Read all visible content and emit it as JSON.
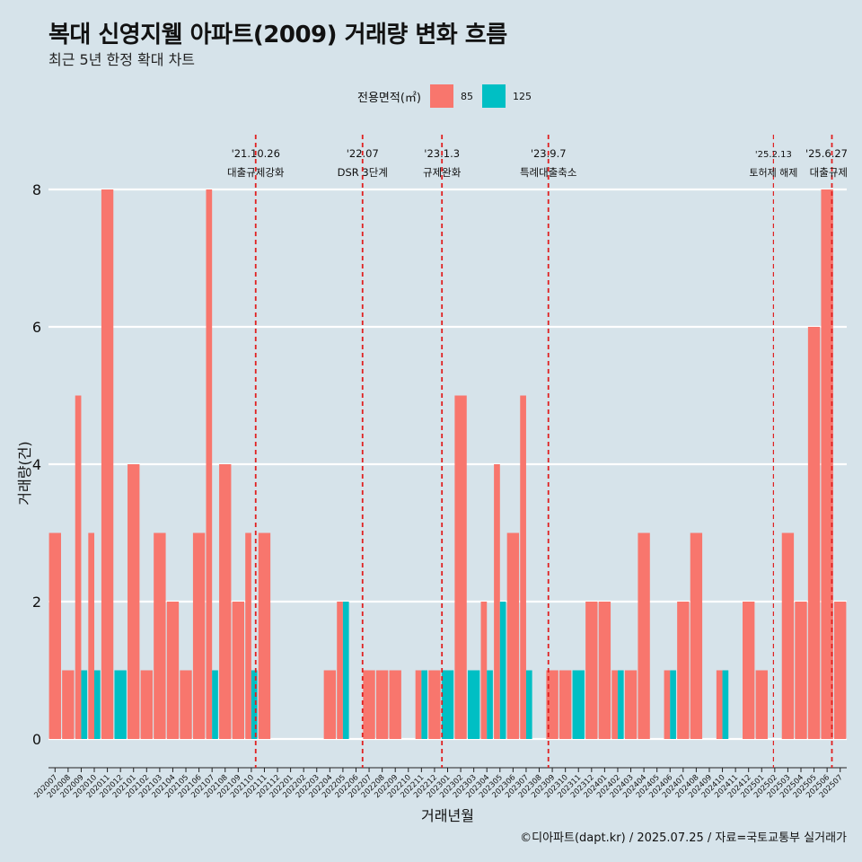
{
  "title": "복대 신영지웰 아파트(2009) 거래량 변화 흐름",
  "subtitle": "최근 5년 한정 확대 차트",
  "caption": "©디아파트(dapt.kr) / 2025.07.25 / 자료=국토교통부 실거래가",
  "legend": {
    "title": "전용면적(㎡)",
    "items": [
      {
        "label": "85",
        "color": "#F8766D"
      },
      {
        "label": "125",
        "color": "#00BFC4"
      }
    ]
  },
  "chart_data": {
    "type": "bar",
    "xlabel": "거래년월",
    "ylabel": "거래량(건)",
    "ylim": [
      0,
      8
    ],
    "yticks": [
      0,
      2,
      4,
      6,
      8
    ],
    "grid": true,
    "legend_position": "top",
    "categories": [
      "202007",
      "202008",
      "202009",
      "202010",
      "202011",
      "202012",
      "202101",
      "202102",
      "202103",
      "202104",
      "202105",
      "202106",
      "202107",
      "202108",
      "202109",
      "202110",
      "202111",
      "202112",
      "202201",
      "202202",
      "202203",
      "202204",
      "202205",
      "202206",
      "202207",
      "202208",
      "202209",
      "202210",
      "202211",
      "202212",
      "202301",
      "202302",
      "202303",
      "202304",
      "202305",
      "202306",
      "202307",
      "202308",
      "202309",
      "202310",
      "202311",
      "202312",
      "202401",
      "202402",
      "202403",
      "202404",
      "202405",
      "202406",
      "202407",
      "202408",
      "202409",
      "202410",
      "202411",
      "202412",
      "202501",
      "202502",
      "202503",
      "202504",
      "202505",
      "202506",
      "202507"
    ],
    "series": [
      {
        "name": "85",
        "color": "#F8766D",
        "values": [
          3,
          1,
          5,
          3,
          8,
          0,
          4,
          1,
          3,
          2,
          1,
          3,
          8,
          4,
          2,
          3,
          3,
          0,
          0,
          0,
          0,
          1,
          2,
          0,
          1,
          1,
          1,
          0,
          1,
          1,
          0,
          5,
          0,
          2,
          4,
          3,
          5,
          0,
          1,
          1,
          0,
          2,
          2,
          1,
          1,
          3,
          0,
          1,
          2,
          3,
          0,
          1,
          0,
          2,
          1,
          0,
          3,
          2,
          6,
          8,
          2
        ]
      },
      {
        "name": "125",
        "color": "#00BFC4",
        "values": [
          0,
          0,
          1,
          1,
          0,
          1,
          0,
          0,
          0,
          0,
          0,
          0,
          1,
          0,
          0,
          1,
          0,
          0,
          0,
          0,
          0,
          0,
          2,
          0,
          0,
          0,
          0,
          0,
          1,
          0,
          1,
          0,
          1,
          1,
          2,
          0,
          1,
          0,
          0,
          0,
          1,
          0,
          0,
          1,
          0,
          0,
          0,
          1,
          0,
          0,
          0,
          1,
          0,
          0,
          0,
          0,
          0,
          0,
          0,
          0,
          0
        ]
      }
    ],
    "events": [
      {
        "date": "'21.10.26",
        "label": "대출규제강화",
        "month": "202110",
        "day": 26
      },
      {
        "date": "'22.07",
        "label": "DSR 3단계",
        "month": "202207",
        "day": 1
      },
      {
        "date": "'23.1.3",
        "label": "규제완화",
        "month": "202301",
        "day": 3
      },
      {
        "date": "'23.9.7",
        "label": "특례대출축소",
        "month": "202309",
        "day": 7
      },
      {
        "date": "'25.2.13",
        "label": "토허제 해제",
        "month": "202502",
        "day": 13
      },
      {
        "date": "'25.6.27",
        "label": "대출규제",
        "month": "202506",
        "day": 27
      }
    ]
  }
}
